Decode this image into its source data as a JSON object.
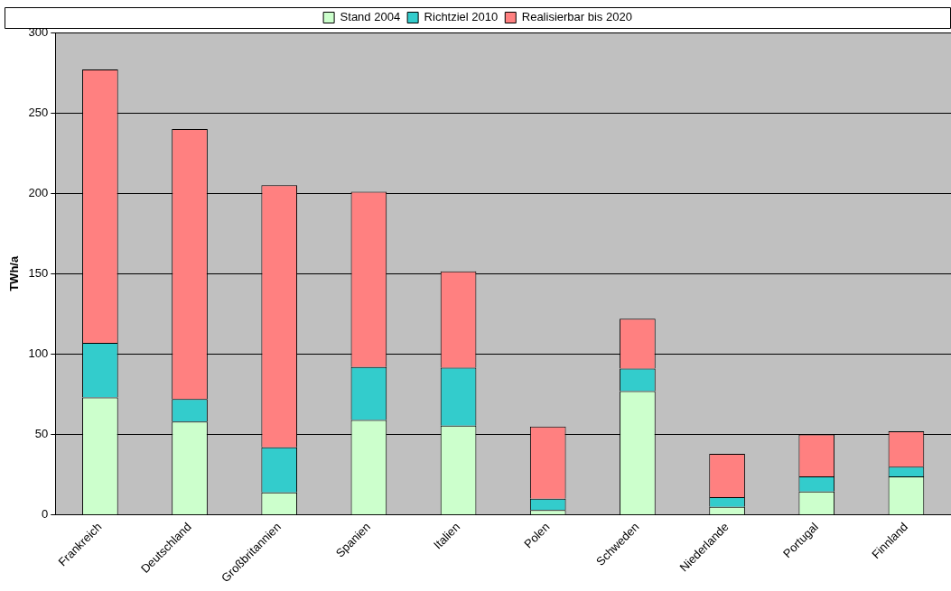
{
  "chart_data": {
    "type": "bar",
    "stacked": true,
    "ylabel": "TWh/a",
    "categories": [
      "Frankreich",
      "Deutschland",
      "Großbritannien",
      "Spanien",
      "Italien",
      "Polen",
      "Schweden",
      "Niederlande",
      "Portugal",
      "Finnland"
    ],
    "series": [
      {
        "name": "Stand 2004",
        "color": "#ccffcc",
        "values": [
          73,
          58,
          14,
          59,
          55.5,
          3,
          77,
          5,
          14.5,
          24
        ]
      },
      {
        "name": "Richtziel 2010",
        "color": "#33cccc",
        "values": [
          34,
          14,
          28,
          33,
          36,
          7,
          14,
          6,
          9.5,
          6
        ]
      },
      {
        "name": "Realisierbar bis 2020",
        "color": "#ff8080",
        "values": [
          170,
          168,
          163,
          109,
          60,
          45,
          31,
          27,
          26,
          22
        ]
      }
    ],
    "ylim": [
      0,
      300
    ],
    "yticks": [
      0,
      50,
      100,
      150,
      200,
      250,
      300
    ],
    "grid": "y",
    "legend": "top"
  }
}
